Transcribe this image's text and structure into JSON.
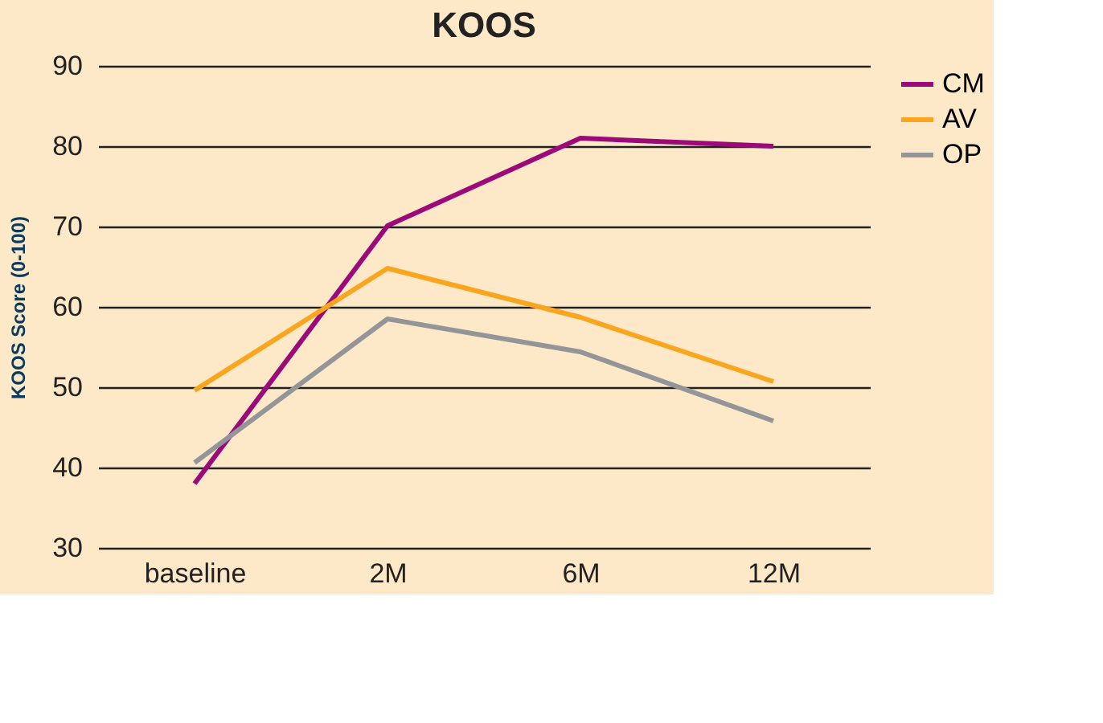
{
  "chart_data": {
    "type": "line",
    "title": "KOOS",
    "ylabel": "KOOS Score (0-100)",
    "categories": [
      "baseline",
      "2M",
      "6M",
      "12M"
    ],
    "series": [
      {
        "name": "CM",
        "color": "#9c0a7a",
        "values": [
          38,
          70.1,
          81,
          80
        ]
      },
      {
        "name": "AV",
        "color": "#f9a51f",
        "values": [
          49.6,
          64.8,
          58.7,
          50.7
        ]
      },
      {
        "name": "OP",
        "color": "#939598",
        "values": [
          40.6,
          58.5,
          54.4,
          45.8
        ]
      }
    ],
    "ylim": [
      30,
      90
    ],
    "yticks": [
      30,
      40,
      50,
      60,
      70,
      80,
      90
    ],
    "grid": "y",
    "legend": "right",
    "marker": "none",
    "line_style": "solid"
  }
}
